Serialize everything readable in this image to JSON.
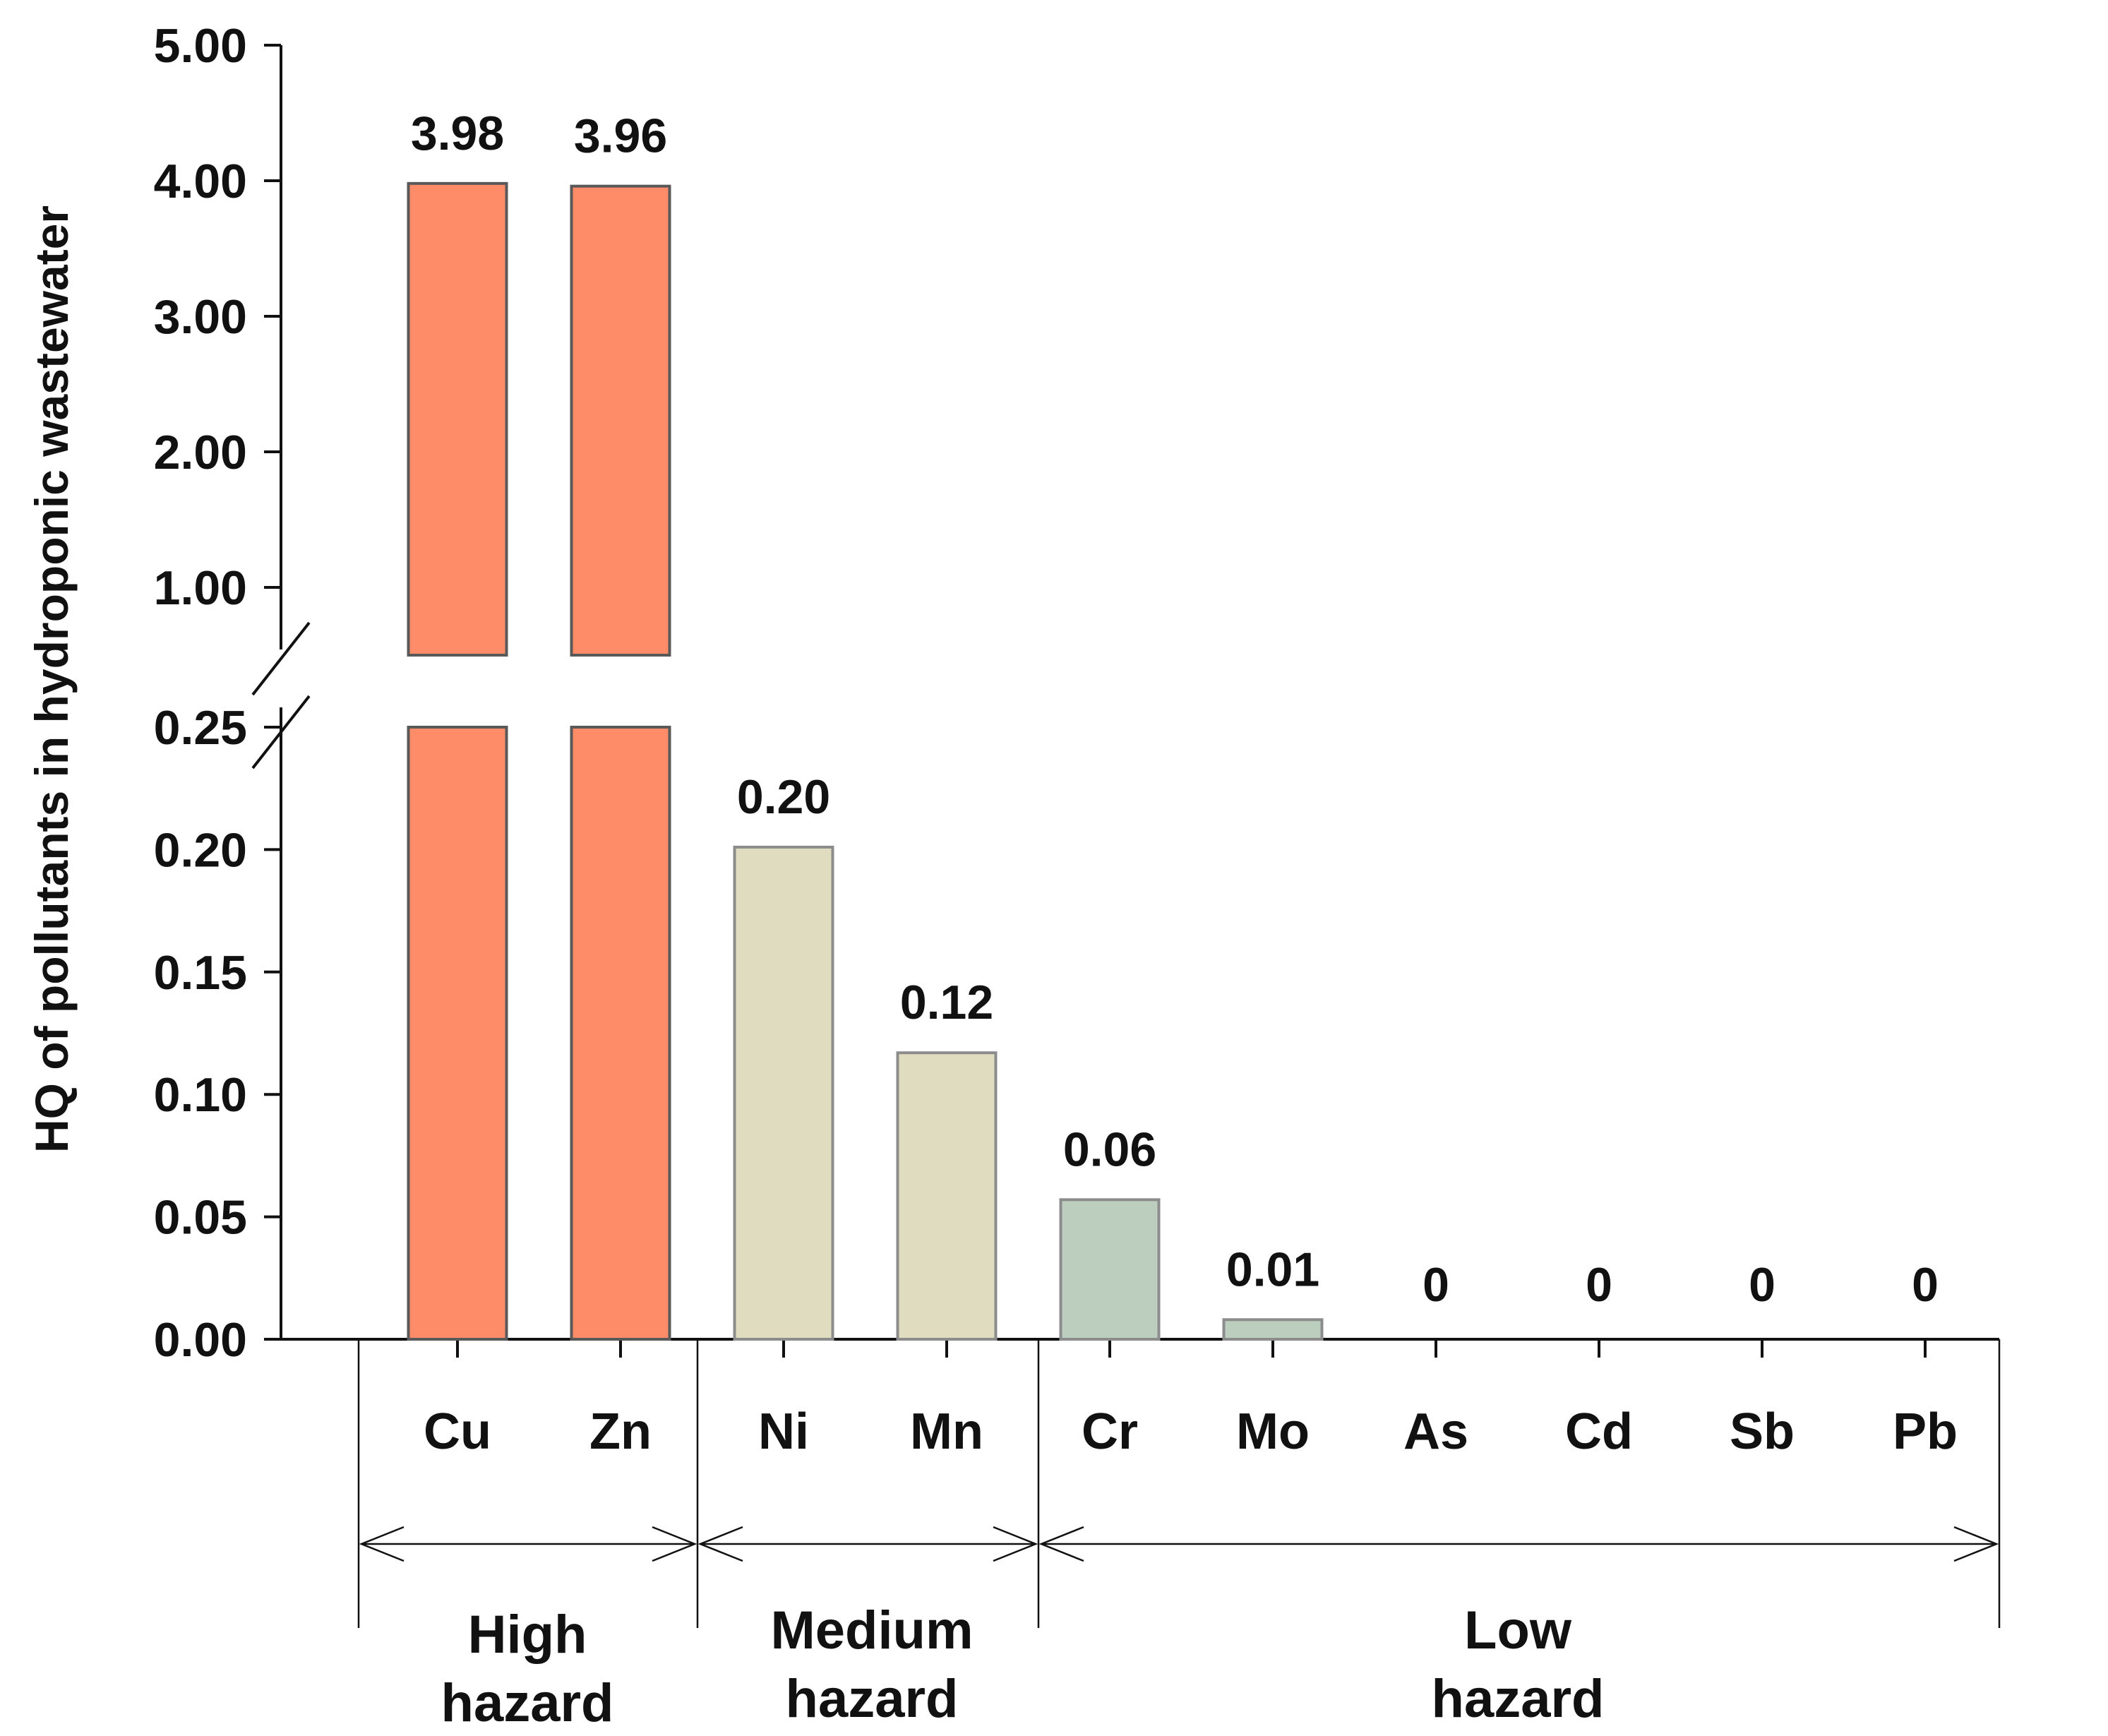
{
  "chart_data": {
    "type": "bar",
    "ylabel": "HQ of pollutants in hydroponic wastewater",
    "xlabel": "",
    "broken_axis": {
      "lower_range": [
        0,
        0.25
      ],
      "upper_range": [
        0.5,
        5.0
      ],
      "lower_ticks": [
        "0.00",
        "0.05",
        "0.10",
        "0.15",
        "0.20",
        "0.25"
      ],
      "upper_ticks": [
        "1.00",
        "2.00",
        "3.00",
        "4.00",
        "5.00"
      ]
    },
    "categories": [
      "Cu",
      "Zn",
      "Ni",
      "Mn",
      "Cr",
      "Mo",
      "As",
      "Cd",
      "Sb",
      "Pb"
    ],
    "values": [
      3.98,
      3.96,
      0.201,
      0.117,
      0.057,
      0.008,
      0,
      0,
      0,
      0
    ],
    "value_labels": [
      "3.98",
      "3.96",
      "0.20",
      "0.12",
      "0.06",
      "0.01",
      "0",
      "0",
      "0",
      "0"
    ],
    "groups": [
      {
        "label_line1": "High",
        "label_line2": "hazard",
        "members": [
          "Cu",
          "Zn"
        ],
        "color": "#ff8c69"
      },
      {
        "label_line1": "Medium",
        "label_line2": "hazard",
        "members": [
          "Ni",
          "Mn"
        ],
        "color": "#e0dcbf"
      },
      {
        "label_line1": "Low",
        "label_line2": "hazard",
        "members": [
          "Cr",
          "Mo",
          "As",
          "Cd",
          "Sb",
          "Pb"
        ],
        "color": "#bccebe"
      }
    ],
    "colors": {
      "high_fill": "#ff8c69",
      "high_stroke": "#595959",
      "medium_fill": "#e0dcbf",
      "medium_stroke": "#8c8c8c",
      "low_fill": "#bccebe",
      "low_stroke": "#8c8c8c"
    }
  }
}
